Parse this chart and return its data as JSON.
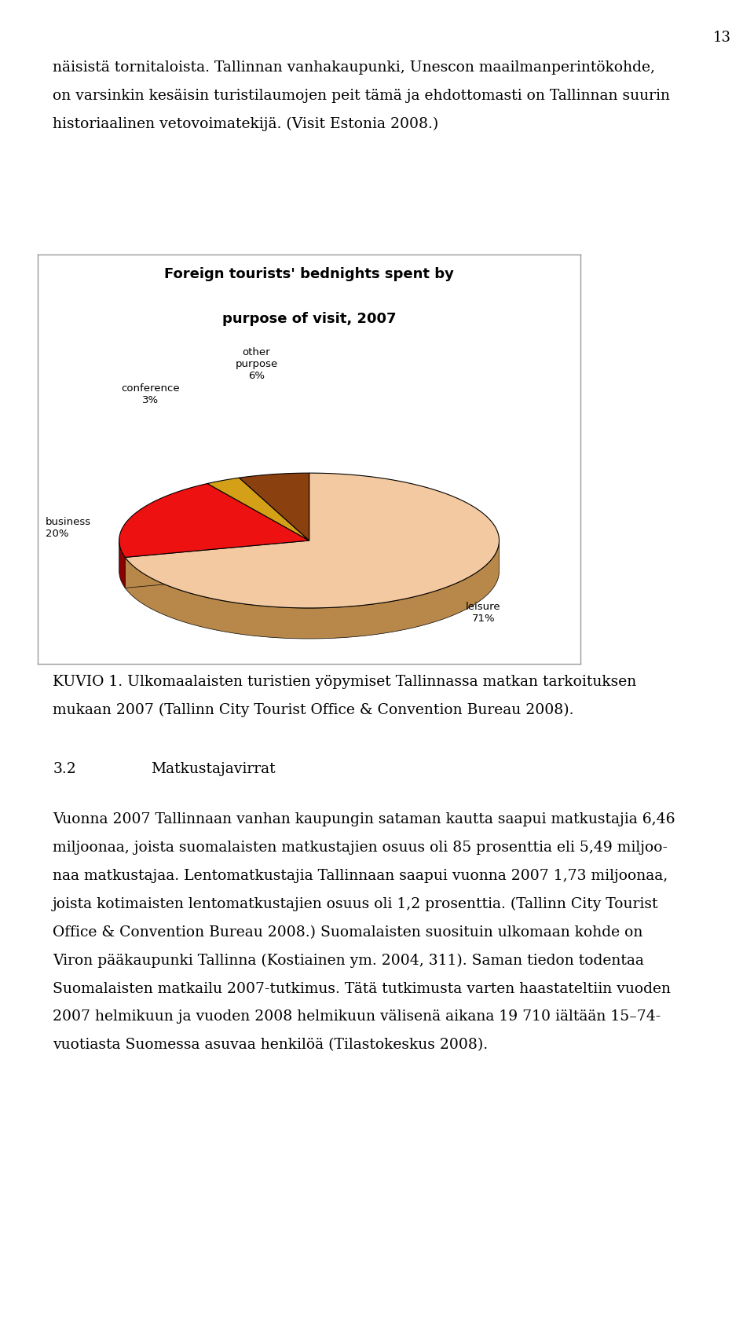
{
  "page_number": "13",
  "top_lines": [
    "näisistä tornitaloista. Tallinnan vanhakaupunki, Unescon maailmanperintökohde,",
    "on varsinkin kesäisin turistilaumojen peit tämä ja ehdottomasti on Tallinnan suurin",
    "historiaalinen vetovoimatekijä. (Visit Estonia 2008.)"
  ],
  "chart_title_line1": "Foreign tourists' bednights spent by",
  "chart_title_line2": "purpose of visit, 2007",
  "slices": [
    71,
    20,
    3,
    6
  ],
  "slice_labels": [
    "leisure\n71%",
    "business\n20%",
    "conference\n3%",
    "other\npurpose\n6%"
  ],
  "top_colors": [
    "#F2C9A0",
    "#EE1111",
    "#D4A017",
    "#8B4010"
  ],
  "side_colors": [
    "#B8884A",
    "#8B0000",
    "#9B6510",
    "#5C2500"
  ],
  "caption_lines": [
    "KUVIO 1. Ulkomaalaisten turistien yöpymiset Tallinnassa matkan tarkoituksen",
    "mukaan 2007 (Tallinn City Tourist Office & Convention Bureau 2008)."
  ],
  "section_num": "3.2",
  "section_title": "Matkustajavirrat",
  "body_lines": [
    "Vuonna 2007 Tallinnaan vanhan kaupungin sataman kautta saapui matkustajia 6,46",
    "miljoonaa, joista suomalaisten matkustajien osuus oli 85 prosenttia eli 5,49 miljoo-",
    "naa matkustajaa. Lentomatkustajia Tallinnaan saapui vuonna 2007 1,73 miljoonaa,",
    "joista kotimaisten lentomatkustajien osuus oli 1,2 prosenttia. (Tallinn City Tourist",
    "Office & Convention Bureau 2008.) Suomalaisten suosituin ulkomaan kohde on",
    "Viron pääkaupunki Tallinna (Kostiainen ym. 2004, 311). Saman tiedon todentaa",
    "Suomalaisten matkailu 2007-tutkimus. Tätä tutkimusta varten haastateltiin vuoden",
    "2007 helmikuun ja vuoden 2008 helmikuun välisenä aikana 19 710 iältään 15–74-",
    "vuotiasta Suomessa asuvaa henkilöä (Tilastokeskus 2008)."
  ],
  "body_font_size": 13.5,
  "title_font_size": 13
}
